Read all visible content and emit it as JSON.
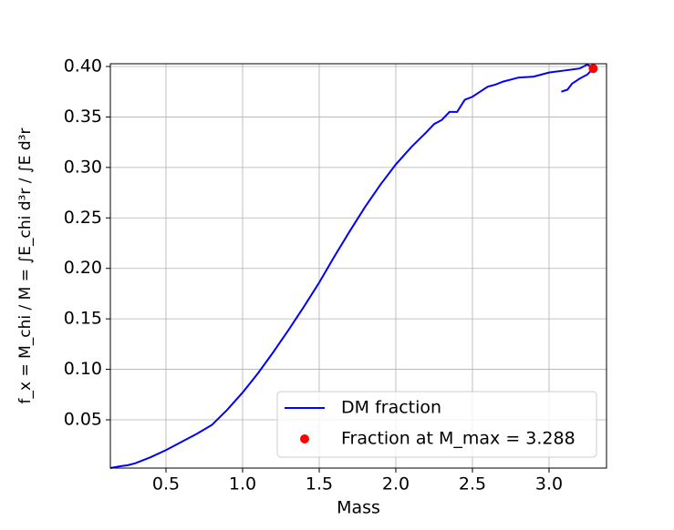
{
  "chart_data": {
    "type": "line",
    "xlabel": "Mass",
    "ylabel": "f_x = M_chi / M = ∫E_chi d³r / ∫E d³r",
    "xlim": [
      0.137,
      3.375
    ],
    "ylim": [
      0.0022,
      0.4027
    ],
    "xticks": [
      0.5,
      {
        "value": 1,
        "label": "1.0"
      },
      1.5,
      {
        "value": 2,
        "label": "2.0"
      },
      2.5,
      {
        "value": 3,
        "label": "3.0"
      }
    ],
    "yticks": [
      0.05,
      {
        "value": 0.1,
        "label": "0.10"
      },
      0.15,
      {
        "value": 0.2,
        "label": "0.20"
      },
      0.25,
      {
        "value": 0.3,
        "label": "0.30"
      },
      0.35,
      {
        "value": 0.4,
        "label": "0.40"
      }
    ],
    "grid": true,
    "legend": "lower right",
    "series": [
      {
        "name": "DM fraction",
        "color": "#0000ff",
        "style": "line",
        "x": [
          0.137,
          0.2,
          0.25,
          0.3,
          0.4,
          0.5,
          0.6,
          0.7,
          0.8,
          0.9,
          1.0,
          1.1,
          1.2,
          1.3,
          1.4,
          1.5,
          1.6,
          1.7,
          1.8,
          1.9,
          2.0,
          2.1,
          2.2,
          2.25,
          2.3,
          2.35,
          2.4,
          2.45,
          2.5,
          2.55,
          2.6,
          2.65,
          2.7,
          2.75,
          2.8,
          2.9,
          3.0,
          3.1,
          3.2,
          3.25,
          3.288,
          3.25,
          3.2,
          3.15,
          3.12,
          3.08
        ],
        "values": [
          0.0022,
          0.004,
          0.005,
          0.007,
          0.013,
          0.02,
          0.028,
          0.036,
          0.045,
          0.06,
          0.077,
          0.096,
          0.117,
          0.139,
          0.162,
          0.186,
          0.212,
          0.237,
          0.261,
          0.283,
          0.303,
          0.32,
          0.335,
          0.343,
          0.347,
          0.355,
          0.355,
          0.367,
          0.37,
          0.375,
          0.38,
          0.382,
          0.385,
          0.387,
          0.389,
          0.39,
          0.394,
          0.396,
          0.398,
          0.402,
          0.398,
          0.392,
          0.388,
          0.383,
          0.377,
          0.375
        ]
      },
      {
        "name": "Fraction at M_max = 3.288",
        "color": "#ff0000",
        "style": "scatter",
        "x": [
          3.288
        ],
        "values": [
          0.398
        ]
      }
    ]
  }
}
